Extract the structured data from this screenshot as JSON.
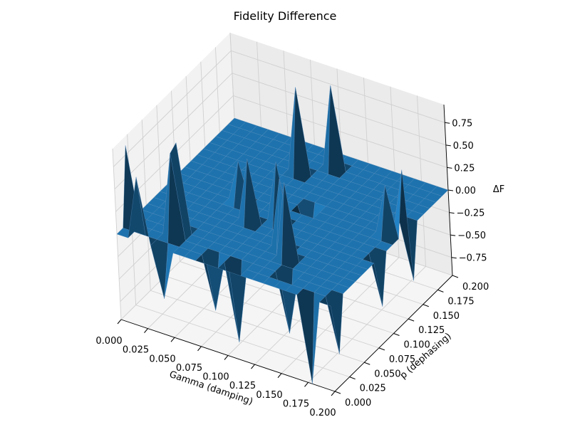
{
  "chart_data": {
    "type": "surface3d",
    "title": "Fidelity Difference",
    "xlabel": "Gamma (damping)",
    "ylabel": "p (dephasing)",
    "zlabel": "ΔF",
    "xlim": [
      0.0,
      0.2
    ],
    "ylim": [
      0.0,
      0.2
    ],
    "zlim": [
      -0.95,
      0.95
    ],
    "xticks": [
      "0.000",
      "0.025",
      "0.050",
      "0.075",
      "0.100",
      "0.125",
      "0.150",
      "0.175",
      "0.200"
    ],
    "yticks": [
      "0.000",
      "0.025",
      "0.050",
      "0.075",
      "0.100",
      "0.125",
      "0.150",
      "0.175",
      "0.200"
    ],
    "zticks": [
      "−0.75",
      "−0.50",
      "−0.25",
      "0.00",
      "0.25",
      "0.50",
      "0.75"
    ],
    "xtick_values": [
      0.0,
      0.025,
      0.05,
      0.075,
      0.1,
      0.125,
      0.15,
      0.175,
      0.2
    ],
    "ytick_values": [
      0.0,
      0.025,
      0.05,
      0.075,
      0.1,
      0.125,
      0.15,
      0.175,
      0.2
    ],
    "ztick_values": [
      -0.75,
      -0.5,
      -0.25,
      0.0,
      0.25,
      0.5,
      0.75
    ],
    "grid": true,
    "surface_color": "#1f77b4",
    "baseline": 0.0,
    "grid_points": 20,
    "peaks": [
      {
        "x": 0.0,
        "y": 0.025,
        "z": 0.85
      },
      {
        "x": 0.021,
        "y": 0.0,
        "z": 0.72
      },
      {
        "x": 0.042,
        "y": 0.021,
        "z": 0.93
      },
      {
        "x": 0.047,
        "y": 0.032,
        "z": 0.98
      },
      {
        "x": 0.063,
        "y": 0.095,
        "z": 0.45
      },
      {
        "x": 0.084,
        "y": 0.074,
        "z": 0.7
      },
      {
        "x": 0.084,
        "y": 0.158,
        "z": 0.95
      },
      {
        "x": 0.105,
        "y": 0.084,
        "z": 0.68
      },
      {
        "x": 0.105,
        "y": 0.179,
        "z": 0.92
      },
      {
        "x": 0.126,
        "y": 0.053,
        "z": 0.78
      },
      {
        "x": 0.137,
        "y": 0.042,
        "z": 0.85
      },
      {
        "x": 0.189,
        "y": 0.116,
        "z": 0.55
      },
      {
        "x": 0.2,
        "y": 0.126,
        "z": 0.7
      },
      {
        "x": 0.042,
        "y": 0.0,
        "z": -0.55
      },
      {
        "x": 0.084,
        "y": 0.011,
        "z": -0.58
      },
      {
        "x": 0.105,
        "y": 0.011,
        "z": -0.85
      },
      {
        "x": 0.116,
        "y": 0.116,
        "z": -0.4
      },
      {
        "x": 0.147,
        "y": 0.021,
        "z": -0.65
      },
      {
        "x": 0.179,
        "y": 0.0,
        "z": -0.95
      },
      {
        "x": 0.2,
        "y": 0.011,
        "z": -0.6
      },
      {
        "x": 0.2,
        "y": 0.084,
        "z": -0.55
      },
      {
        "x": 0.2,
        "y": 0.137,
        "z": -0.6
      }
    ]
  }
}
